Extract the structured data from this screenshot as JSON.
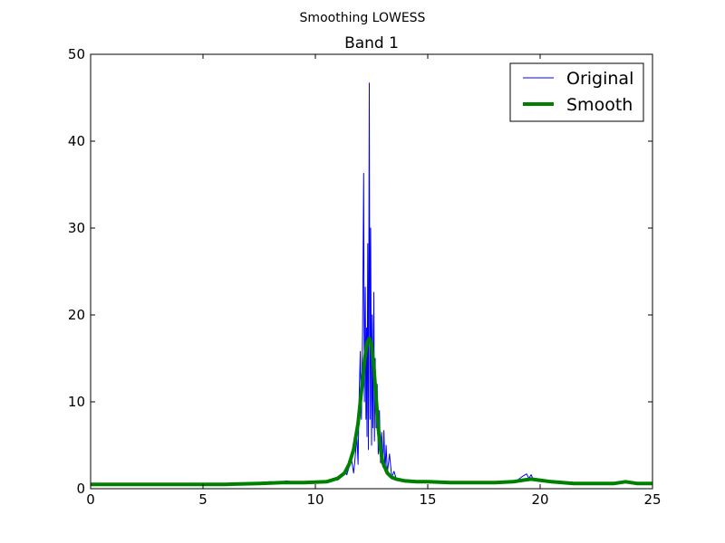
{
  "figure": {
    "suptitle": "Smoothing LOWESS"
  },
  "colors": {
    "original": "#0000ff",
    "smooth": "#008000",
    "axes": "#000000",
    "background": "#ffffff"
  },
  "chart_data": {
    "type": "line",
    "title": "Band 1",
    "xlabel": "",
    "ylabel": "",
    "xlim": [
      0,
      25
    ],
    "ylim": [
      0,
      50
    ],
    "xticks": [
      0,
      5,
      10,
      15,
      20,
      25
    ],
    "yticks": [
      0,
      10,
      20,
      30,
      40,
      50
    ],
    "grid": false,
    "legend": {
      "position": "top-right",
      "entries": [
        "Original",
        "Smooth"
      ]
    },
    "series": [
      {
        "name": "Original",
        "x": [
          0,
          2,
          4,
          6,
          7.5,
          8,
          8.3,
          8.7,
          9,
          9.5,
          10,
          10.5,
          10.8,
          11,
          11.1,
          11.3,
          11.4,
          11.5,
          11.6,
          11.7,
          11.75,
          11.8,
          11.85,
          11.9,
          11.95,
          12.0,
          12.05,
          12.1,
          12.15,
          12.18,
          12.22,
          12.25,
          12.28,
          12.3,
          12.33,
          12.36,
          12.4,
          12.43,
          12.46,
          12.5,
          12.53,
          12.56,
          12.6,
          12.63,
          12.66,
          12.7,
          12.75,
          12.8,
          12.85,
          12.9,
          12.95,
          13.0,
          13.05,
          13.1,
          13.15,
          13.2,
          13.3,
          13.4,
          13.5,
          13.6,
          13.8,
          14.0,
          14.2,
          14.5,
          15.0,
          15.3,
          16,
          17,
          18,
          18.5,
          19.0,
          19.2,
          19.4,
          19.5,
          19.6,
          19.7,
          19.8,
          20.0,
          20.5,
          21,
          22,
          23,
          23.5,
          23.8,
          24,
          25
        ],
        "values": [
          0.6,
          0.6,
          0.6,
          0.6,
          0.7,
          0.8,
          0.7,
          0.9,
          0.8,
          0.7,
          0.7,
          0.8,
          1.2,
          1.0,
          1.5,
          2.0,
          1.6,
          2.5,
          3.5,
          1.8,
          3.0,
          4.5,
          6.0,
          2.8,
          11.0,
          15.8,
          8.0,
          18.0,
          36.3,
          10.0,
          23.2,
          8.0,
          18.5,
          6.0,
          28.2,
          4.5,
          46.7,
          8.0,
          30.0,
          5.0,
          20.0,
          7.0,
          22.6,
          5.5,
          15.0,
          7.0,
          12.0,
          4.0,
          9.0,
          3.0,
          6.5,
          2.5,
          6.7,
          2.0,
          5.0,
          1.8,
          4.0,
          1.3,
          2.0,
          1.1,
          1.0,
          1.0,
          1.0,
          0.9,
          0.8,
          0.9,
          0.7,
          0.7,
          0.7,
          0.8,
          1.0,
          1.4,
          1.7,
          1.2,
          1.6,
          1.0,
          1.2,
          0.9,
          0.7,
          0.7,
          0.6,
          0.7,
          0.7,
          0.9,
          0.7,
          0.6
        ]
      },
      {
        "name": "Smooth",
        "x": [
          0,
          2,
          4,
          6,
          7.5,
          8.5,
          9.5,
          10.5,
          11.0,
          11.3,
          11.5,
          11.7,
          11.9,
          12.0,
          12.1,
          12.2,
          12.3,
          12.4,
          12.5,
          12.6,
          12.7,
          12.8,
          12.9,
          13.0,
          13.2,
          13.4,
          13.6,
          14.0,
          14.5,
          15.0,
          16.0,
          17.0,
          18.0,
          18.8,
          19.3,
          19.6,
          19.9,
          20.5,
          21.5,
          22.5,
          23.3,
          23.8,
          24.3,
          25
        ],
        "values": [
          0.5,
          0.5,
          0.5,
          0.5,
          0.6,
          0.7,
          0.7,
          0.8,
          1.2,
          1.8,
          2.8,
          4.5,
          7.5,
          10.0,
          12.5,
          15.0,
          16.8,
          17.3,
          16.5,
          14.0,
          10.5,
          7.0,
          4.5,
          3.0,
          1.8,
          1.3,
          1.1,
          0.9,
          0.8,
          0.8,
          0.7,
          0.7,
          0.7,
          0.8,
          1.0,
          1.1,
          1.0,
          0.8,
          0.6,
          0.6,
          0.6,
          0.8,
          0.6,
          0.6
        ]
      }
    ]
  }
}
